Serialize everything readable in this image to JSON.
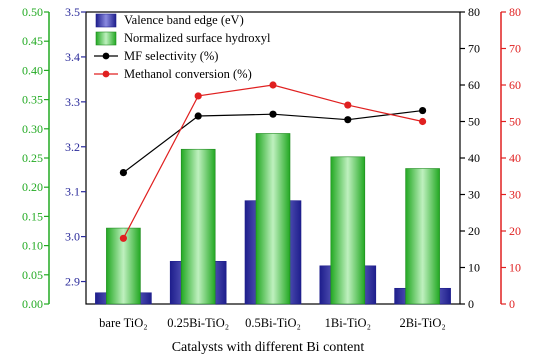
{
  "chart_data": {
    "type": "bar+line",
    "xlabel": "Catalysts with different Bi content",
    "categories": [
      "bare TiO₂",
      "0.25Bi-TiO₂",
      "0.5Bi-TiO₂",
      "1Bi-TiO₂",
      "2Bi-TiO₂"
    ],
    "series": [
      {
        "name": "Valence band edge (eV)",
        "kind": "bar",
        "axis": "left-inner",
        "color": "#3a3aa8",
        "values": [
          2.875,
          2.945,
          3.08,
          2.935,
          2.885
        ]
      },
      {
        "name": "Normalized surface hydroxyl",
        "kind": "bar",
        "axis": "left-outer",
        "color": "#4cc84c",
        "values": [
          0.13,
          0.265,
          0.292,
          0.252,
          0.232
        ]
      },
      {
        "name": "MF selectivity (%)",
        "kind": "line",
        "axis": "right-inner",
        "color": "#000000",
        "values": [
          36,
          51.5,
          52,
          50.5,
          53
        ]
      },
      {
        "name": "Methanol conversion (%)",
        "kind": "line",
        "axis": "right-outer",
        "color": "#e02020",
        "values": [
          18,
          57,
          60,
          54.5,
          50
        ]
      }
    ],
    "axes": {
      "left_outer": {
        "color": "#22aa22",
        "ylim": [
          0.0,
          0.5
        ],
        "ticks": [
          "0.00",
          "0.05",
          "0.10",
          "0.15",
          "0.20",
          "0.25",
          "0.30",
          "0.35",
          "0.40",
          "0.45",
          "0.50"
        ]
      },
      "left_inner": {
        "color": "#2a2a9a",
        "ylim": [
          2.85,
          3.5
        ],
        "ticks": [
          "2.9",
          "3.0",
          "3.1",
          "3.2",
          "3.3",
          "3.4",
          "3.5"
        ]
      },
      "right_inner": {
        "color": "#000000",
        "ylim": [
          0,
          80
        ],
        "ticks": [
          "0",
          "10",
          "20",
          "30",
          "40",
          "50",
          "60",
          "70",
          "80"
        ]
      },
      "right_outer": {
        "color": "#e02020",
        "ylim": [
          0,
          80
        ],
        "ticks": [
          "0",
          "10",
          "20",
          "30",
          "40",
          "50",
          "60",
          "70",
          "80"
        ]
      }
    },
    "legend": {
      "placement": "top-left",
      "entries": [
        "Valence band edge (eV)",
        "Normalized surface hydroxyl",
        "MF selectivity (%)",
        "Methanol conversion (%)"
      ]
    }
  }
}
